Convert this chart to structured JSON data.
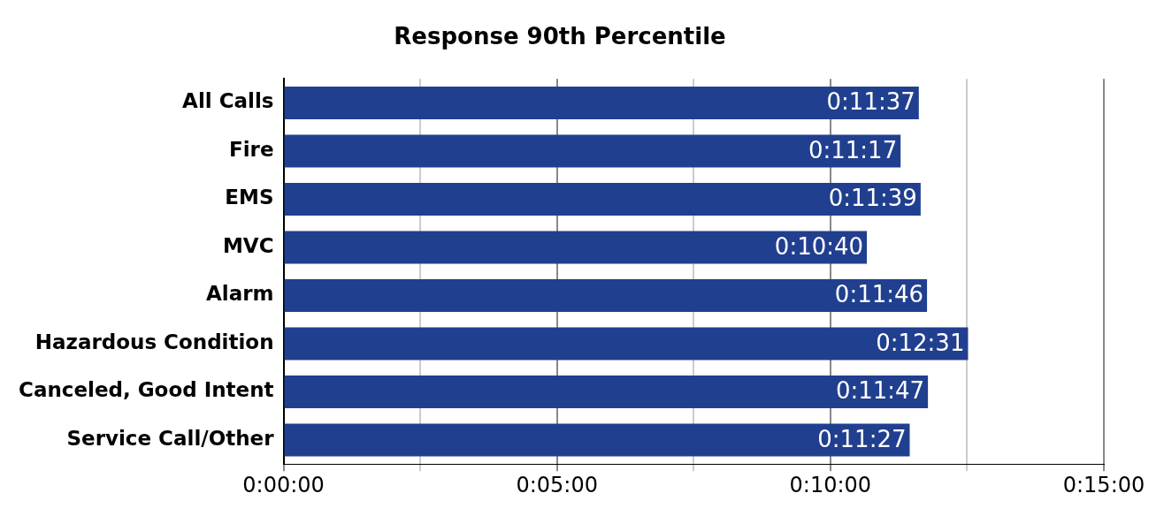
{
  "chart_data": {
    "type": "bar",
    "orientation": "horizontal",
    "title": "Response 90th Percentile",
    "categories": [
      "All Calls",
      "Fire",
      "EMS",
      "MVC",
      "Alarm",
      "Hazardous Condition",
      "Canceled, Good Intent",
      "Service Call/Other"
    ],
    "values": [
      697,
      677,
      699,
      640,
      706,
      751,
      707,
      687
    ],
    "value_labels": [
      "0:11:37",
      "0:11:17",
      "0:11:39",
      "0:10:40",
      "0:11:46",
      "0:12:31",
      "0:11:47",
      "0:11:27"
    ],
    "color": "#213f8f",
    "xlim": [
      0,
      900
    ],
    "xticks": [
      {
        "value": 0,
        "label": "0:00:00"
      },
      {
        "value": 150,
        "label": null
      },
      {
        "value": 300,
        "label": "0:05:00"
      },
      {
        "value": 450,
        "label": null
      },
      {
        "value": 600,
        "label": "0:10:00"
      },
      {
        "value": 750,
        "label": null
      },
      {
        "value": 900,
        "label": "0:15:00"
      }
    ],
    "grid": "x",
    "legend": false
  }
}
